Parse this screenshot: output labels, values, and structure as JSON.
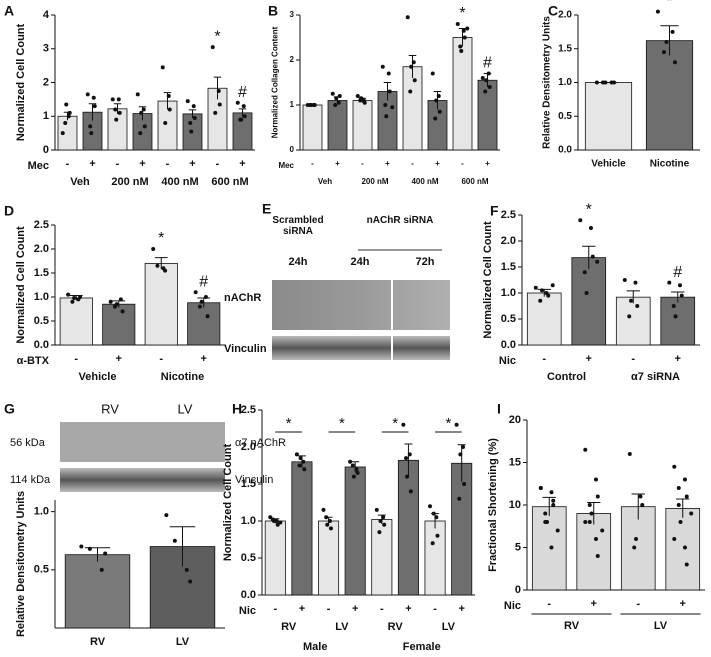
{
  "chart_data": [
    {
      "type": "bar",
      "panel": "A",
      "ylabel": "Normalized Cell Count",
      "factor": "Mec",
      "categories": [
        "-",
        "+",
        "-",
        "+",
        "-",
        "+",
        "-",
        "+"
      ],
      "groups": [
        "Veh",
        "200 nM",
        "400 nM",
        "600 nM"
      ],
      "values": [
        1.0,
        1.12,
        1.22,
        1.08,
        1.45,
        1.07,
        1.83,
        1.1
      ],
      "errors": [
        0.12,
        0.25,
        0.15,
        0.2,
        0.25,
        0.12,
        0.33,
        0.12
      ],
      "points": [
        [
          0.5,
          1.0,
          1.1,
          0.8,
          1.35
        ],
        [
          1.65,
          1.55,
          1.3,
          0.7,
          0.5
        ],
        [
          1.5,
          1.5,
          1.1,
          1.2,
          0.9
        ],
        [
          1.65,
          1.2,
          0.7,
          0.5,
          1.1
        ],
        [
          2.45,
          1.6,
          1.2,
          0.8
        ],
        [
          1.45,
          1.3,
          0.95,
          0.8,
          0.55
        ],
        [
          3.05,
          1.75,
          1.35,
          1.1
        ],
        [
          1.4,
          1.3,
          1.0,
          0.9,
          0.9
        ]
      ],
      "colors": [
        "#e6e6e6",
        "#6e6e6e",
        "#e6e6e6",
        "#6e6e6e",
        "#e6e6e6",
        "#6e6e6e",
        "#e6e6e6",
        "#6e6e6e"
      ],
      "sig": [
        null,
        null,
        null,
        null,
        null,
        null,
        "*",
        "#"
      ],
      "ylim": [
        0,
        4
      ],
      "yticks": [
        0,
        1,
        2,
        3,
        4
      ]
    },
    {
      "type": "bar",
      "panel": "B",
      "ylabel": "Normalized Collagen Content",
      "factor": "Mec",
      "categories": [
        "-",
        "+",
        "-",
        "+",
        "-",
        "+",
        "-",
        "+"
      ],
      "groups": [
        "Veh",
        "200 nM",
        "400 nM",
        "600 nM"
      ],
      "values": [
        1.0,
        1.1,
        1.1,
        1.3,
        1.85,
        1.1,
        2.5,
        1.55
      ],
      "errors": [
        0.02,
        0.08,
        0.05,
        0.2,
        0.25,
        0.2,
        0.2,
        0.15
      ],
      "points": [
        [
          1,
          1,
          1,
          1,
          1
        ],
        [
          1.25,
          1.05,
          1.2,
          1.0,
          1.15
        ],
        [
          1.2,
          1.1,
          1.05,
          1.1,
          1.15
        ],
        [
          1.85,
          1.7,
          1.3,
          1.0,
          0.75,
          0.95
        ],
        [
          2.95,
          1.95,
          1.55,
          1.3,
          1.85
        ],
        [
          1.7,
          1.2,
          0.85,
          0.7,
          1.1
        ],
        [
          2.8,
          2.65,
          2.5,
          2.3,
          2.2,
          2.7
        ],
        [
          1.6,
          1.7,
          1.4,
          1.3,
          1.55
        ]
      ],
      "colors": [
        "#e6e6e6",
        "#6e6e6e",
        "#e6e6e6",
        "#6e6e6e",
        "#e6e6e6",
        "#6e6e6e",
        "#e6e6e6",
        "#6e6e6e"
      ],
      "sig": [
        null,
        null,
        null,
        null,
        null,
        null,
        "*",
        "#"
      ],
      "ylim": [
        0,
        3
      ],
      "yticks": [
        0,
        1,
        2,
        3
      ]
    },
    {
      "type": "bar",
      "panel": "C",
      "ylabel": "Relative Densitometry Units",
      "categories": [
        "Vehicle",
        "Nicotine"
      ],
      "values": [
        1.0,
        1.62
      ],
      "errors": [
        0,
        0.22
      ],
      "points": [
        [
          1,
          1,
          1,
          1,
          1
        ],
        [
          2.05,
          1.75,
          1.3,
          1.45,
          1.6
        ]
      ],
      "colors": [
        "#e6e6e6",
        "#6e6e6e"
      ],
      "sig": [
        null,
        "*"
      ],
      "ylim": [
        0,
        2
      ],
      "yticks": [
        {
          "value": 0,
          "label": "0.0"
        },
        {
          "value": 0.5,
          "label": "0.5"
        },
        {
          "value": 1,
          "label": "1.0"
        },
        {
          "value": 1.5,
          "label": "1.5"
        },
        {
          "value": 2,
          "label": "2.0"
        }
      ]
    },
    {
      "type": "bar",
      "panel": "D",
      "ylabel": "Normalized Cell Count",
      "factor": "α-BTX",
      "categories": [
        "-",
        "+",
        "-",
        "+"
      ],
      "groups": [
        "Vehicle",
        "Nicotine"
      ],
      "values": [
        0.98,
        0.85,
        1.7,
        0.88
      ],
      "errors": [
        0.05,
        0.07,
        0.12,
        0.1
      ],
      "points": [
        [
          1.05,
          0.95,
          1.0,
          0.9,
          0.98
        ],
        [
          0.9,
          0.95,
          0.7,
          0.8,
          0.85
        ],
        [
          2.0,
          1.6,
          1.55,
          1.65
        ],
        [
          1.1,
          1.0,
          0.6,
          0.8,
          0.9
        ]
      ],
      "colors": [
        "#e6e6e6",
        "#6e6e6e",
        "#e6e6e6",
        "#6e6e6e"
      ],
      "sig": [
        null,
        null,
        "*",
        "#"
      ],
      "ylim": [
        0,
        2.5
      ],
      "yticks": [
        {
          "value": 0,
          "label": "0.0"
        },
        {
          "value": 0.5,
          "label": "0.5"
        },
        {
          "value": 1,
          "label": "1.0"
        },
        {
          "value": 1.5,
          "label": "1.5"
        },
        {
          "value": 2,
          "label": "2.0"
        },
        {
          "value": 2.5,
          "label": "2.5"
        }
      ]
    },
    {
      "type": "bar",
      "panel": "F",
      "ylabel": "Normalized Cell Count",
      "factor": "Nic",
      "categories": [
        "-",
        "+",
        "-",
        "+"
      ],
      "groups": [
        "Control",
        "α7 siRNA"
      ],
      "values": [
        1.0,
        1.68,
        0.92,
        0.92
      ],
      "errors": [
        0.07,
        0.22,
        0.12,
        0.1
      ],
      "points": [
        [
          1.1,
          1.0,
          0.95,
          0.85,
          1.05,
          1.15
        ],
        [
          2.4,
          2.25,
          1.7,
          1.4,
          1.0,
          1.6
        ],
        [
          1.25,
          1.2,
          0.75,
          0.55,
          0.85
        ],
        [
          1.2,
          1.15,
          0.95,
          0.75,
          0.55
        ]
      ],
      "colors": [
        "#e6e6e6",
        "#6e6e6e",
        "#e6e6e6",
        "#6e6e6e"
      ],
      "sig": [
        null,
        "*",
        null,
        "#"
      ],
      "ylim": [
        0,
        2.5
      ],
      "yticks": [
        {
          "value": 0,
          "label": "0.0"
        },
        {
          "value": 0.5,
          "label": "0.5"
        },
        {
          "value": 1,
          "label": "1.0"
        },
        {
          "value": 1.5,
          "label": "1.5"
        },
        {
          "value": 2,
          "label": "2.0"
        },
        {
          "value": 2.5,
          "label": "2.5"
        }
      ]
    },
    {
      "type": "bar",
      "panel": "G",
      "ylabel": "Relative Densitometry Units",
      "categories": [
        "RV",
        "LV"
      ],
      "values": [
        0.63,
        0.7
      ],
      "errors": [
        0.06,
        0.17
      ],
      "points": [
        [
          0.7,
          0.5,
          0.64,
          0.68
        ],
        [
          0.97,
          0.5,
          0.4,
          0.75
        ]
      ],
      "colors": [
        "#7a7a7a",
        "#5e5e5e"
      ],
      "ylim": [
        0,
        1.1
      ],
      "yticks": [
        {
          "value": 0.5,
          "label": "0.5"
        },
        {
          "value": 1,
          "label": "1.0"
        }
      ]
    },
    {
      "type": "bar",
      "panel": "H",
      "ylabel": "Normalized Cell Count",
      "factor": "Nic",
      "categories": [
        "-",
        "+",
        "-",
        "+",
        "-",
        "+",
        "-",
        "+"
      ],
      "groups": [
        "RV",
        "LV",
        "RV",
        "LV"
      ],
      "supergroups": [
        "Male",
        "Female"
      ],
      "values": [
        1.0,
        1.8,
        1.0,
        1.73,
        1.02,
        1.82,
        1.0,
        1.78
      ],
      "errors": [
        0.03,
        0.08,
        0.05,
        0.07,
        0.06,
        0.22,
        0.1,
        0.25
      ],
      "points": [
        [
          1.05,
          1.0,
          0.95,
          1.02,
          1.0,
          0.98
        ],
        [
          1.9,
          1.8,
          1.7,
          1.75,
          1.85
        ],
        [
          1.15,
          1.0,
          0.9,
          1.05,
          0.95
        ],
        [
          1.8,
          1.7,
          1.65,
          1.75,
          1.6
        ],
        [
          1.15,
          1.05,
          0.95,
          0.85,
          1.0
        ],
        [
          2.3,
          1.9,
          1.4,
          1.85,
          1.6
        ],
        [
          1.2,
          1.05,
          0.8,
          0.7,
          1.1
        ],
        [
          2.3,
          2.0,
          1.5,
          1.3,
          1.9
        ]
      ],
      "colors": [
        "#e6e6e6",
        "#6e6e6e",
        "#e6e6e6",
        "#6e6e6e",
        "#e6e6e6",
        "#6e6e6e",
        "#e6e6e6",
        "#6e6e6e"
      ],
      "brackets": [
        "*",
        "*",
        "*",
        "*"
      ],
      "ylim": [
        0,
        2.5
      ],
      "yticks": [
        {
          "value": 0,
          "label": "0.0"
        },
        {
          "value": 0.5,
          "label": "0.5"
        },
        {
          "value": 1,
          "label": "1.0"
        },
        {
          "value": 1.5,
          "label": "1.5"
        },
        {
          "value": 2,
          "label": "2.0"
        },
        {
          "value": 2.5,
          "label": "2.5"
        }
      ]
    },
    {
      "type": "bar",
      "panel": "I",
      "ylabel": "Fractional Shortening (%)",
      "factor": "Nic",
      "categories": [
        "-",
        "+",
        "-",
        "+"
      ],
      "groups": [
        "RV",
        "LV"
      ],
      "group_lines": true,
      "values": [
        9.8,
        9.0,
        9.8,
        9.6
      ],
      "errors": [
        1.1,
        1.3,
        1.5,
        1.1
      ],
      "points": [
        [
          12,
          11.5,
          10.5,
          9,
          8,
          7,
          12,
          5,
          10,
          8
        ],
        [
          16.5,
          13,
          11,
          10,
          9,
          7,
          8,
          6,
          4,
          8
        ],
        [
          16,
          11,
          10,
          5,
          6
        ],
        [
          14.5,
          13,
          11,
          10,
          8,
          9,
          6,
          5,
          3,
          12
        ]
      ],
      "colors": [
        "#d9d9d9",
        "#d9d9d9",
        "#d9d9d9",
        "#d9d9d9"
      ],
      "ylim": [
        0,
        20
      ],
      "yticks": [
        0,
        5,
        10,
        15,
        20
      ]
    }
  ],
  "blots": {
    "E": {
      "panel": "E",
      "scrambled": "Scrambled siRNA",
      "knockdown": "nAChR siRNA",
      "times": [
        "24h",
        "24h",
        "72h"
      ],
      "rows": [
        "nAChR",
        "Vinculin"
      ]
    },
    "G": {
      "lanes": [
        "RV",
        "LV"
      ],
      "sizes": [
        "56 kDa",
        "114 kDa"
      ],
      "rows": [
        "α7 nAChR",
        "Vinculin"
      ]
    }
  }
}
